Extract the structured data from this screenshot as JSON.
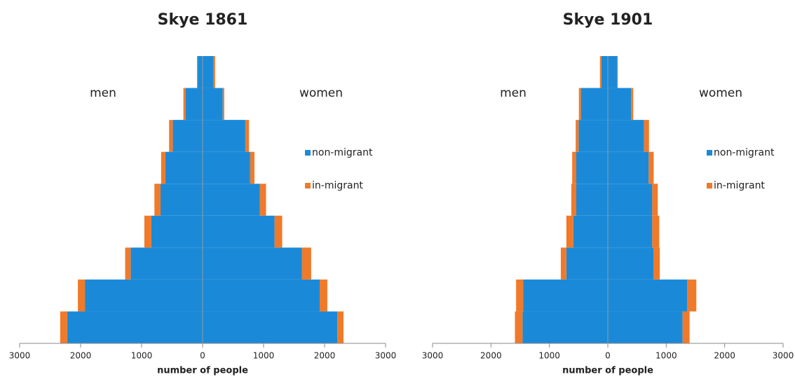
{
  "chart_data": [
    {
      "type": "pyramid",
      "title": "Skye 1861",
      "left_label": "men",
      "right_label": "women",
      "xlabel": "number of people",
      "categories": [
        null,
        null,
        null,
        null,
        null,
        null,
        null,
        null,
        null
      ],
      "series": [
        {
          "name": "non-migrant",
          "color": "#1a8ad8",
          "men": [
            2220,
            1930,
            1180,
            840,
            690,
            610,
            490,
            280,
            80
          ],
          "women": [
            2210,
            1920,
            1630,
            1180,
            940,
            780,
            700,
            330,
            180
          ]
        },
        {
          "name": "in-migrant",
          "color": "#f07a2a",
          "men": [
            115,
            115,
            90,
            115,
            100,
            70,
            60,
            35,
            12
          ],
          "women": [
            100,
            125,
            150,
            125,
            100,
            70,
            60,
            25,
            25
          ]
        }
      ],
      "xlim": [
        -3000,
        3000
      ],
      "xticks": [
        {
          "value": -3000,
          "label": "3000"
        },
        {
          "value": -2000,
          "label": "2000"
        },
        {
          "value": -1000,
          "label": "1000"
        },
        0,
        1000,
        2000,
        3000
      ]
    },
    {
      "type": "pyramid",
      "title": "Skye 1901",
      "left_label": "men",
      "right_label": "women",
      "xlabel": "number of people",
      "categories": [
        null,
        null,
        null,
        null,
        null,
        null,
        null,
        null,
        null
      ],
      "series": [
        {
          "name": "non-migrant",
          "color": "#1a8ad8",
          "men": [
            1460,
            1450,
            710,
            590,
            540,
            540,
            500,
            460,
            110
          ],
          "women": [
            1280,
            1360,
            780,
            760,
            760,
            700,
            620,
            400,
            160
          ]
        },
        {
          "name": "in-migrant",
          "color": "#f07a2a",
          "men": [
            130,
            120,
            95,
            120,
            85,
            70,
            50,
            35,
            25
          ],
          "women": [
            120,
            155,
            110,
            120,
            95,
            85,
            85,
            35,
            12
          ]
        }
      ],
      "xlim": [
        -3000,
        3000
      ],
      "xticks": [
        {
          "value": -3000,
          "label": "3000"
        },
        {
          "value": -2000,
          "label": "2000"
        },
        {
          "value": -1000,
          "label": "1000"
        },
        0,
        1000,
        2000,
        3000
      ]
    }
  ]
}
